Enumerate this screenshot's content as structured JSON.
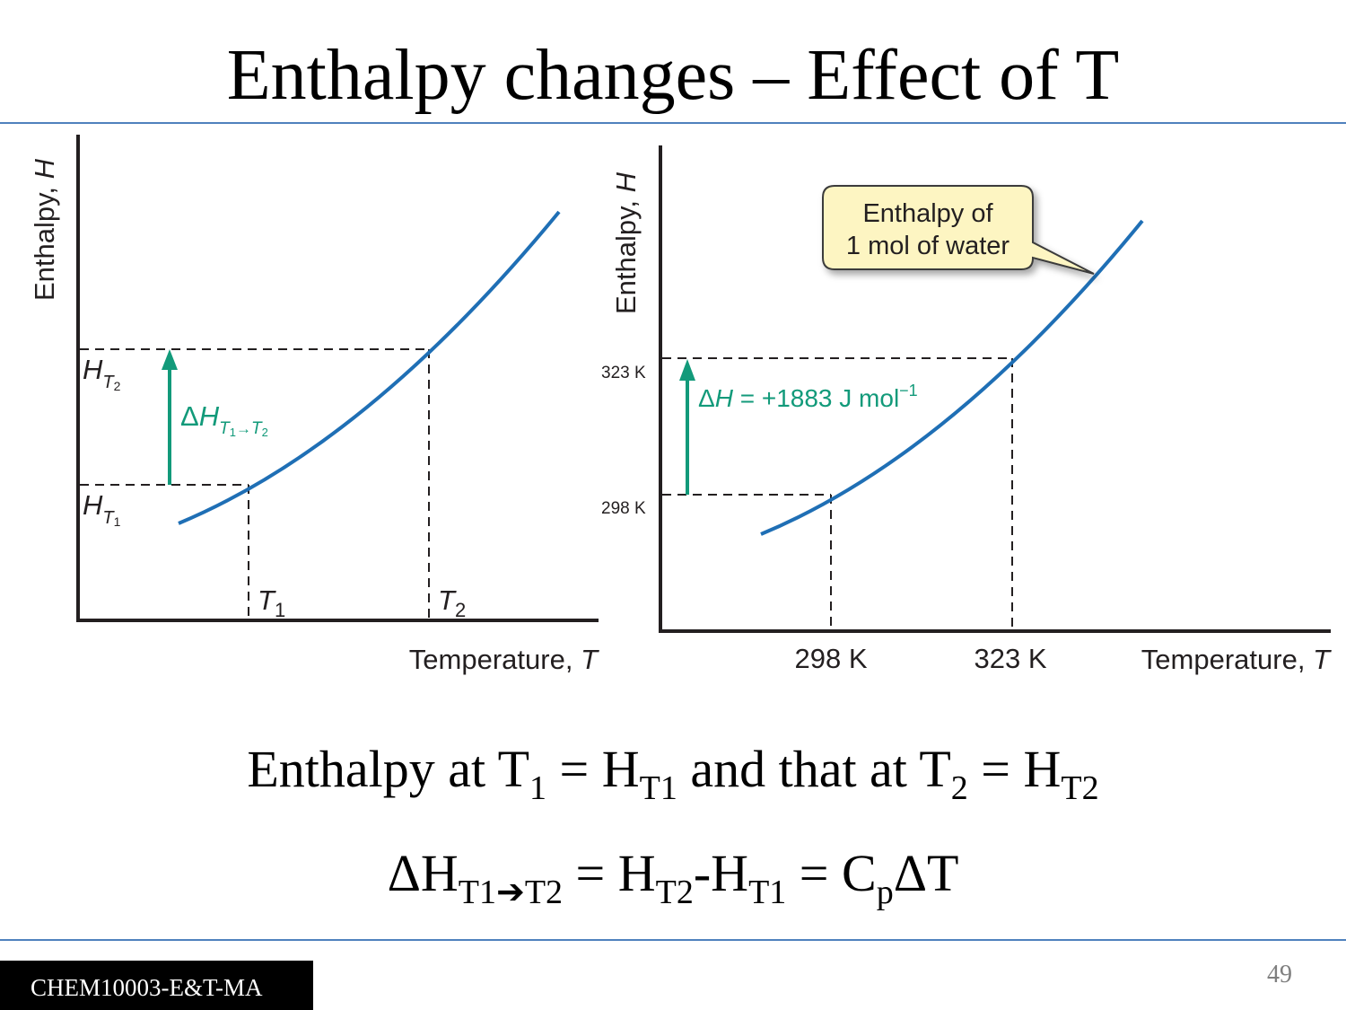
{
  "slide": {
    "title": "Enthalpy changes – Effect of T",
    "page_number": "49",
    "footer": "CHEM10003-E&T-MA"
  },
  "colors": {
    "curve": "#1f6fb5",
    "arrow": "#129a7a",
    "rule": "#4f81bd",
    "callout_fill": "#fdf5c2"
  },
  "left_diagram": {
    "y_axis_label": "Enthalpy, ",
    "y_axis_symbol": "H",
    "x_axis_label": "Temperature, ",
    "x_axis_symbol": "T",
    "h_t2": {
      "base": "H",
      "sub": "T",
      "subsub": "2"
    },
    "h_t1": {
      "base": "H",
      "sub": "T",
      "subsub": "1"
    },
    "t1": {
      "base": "T",
      "sub": "1"
    },
    "t2": {
      "base": "T",
      "sub": "2"
    },
    "delta_label": {
      "delta": "Δ",
      "base": "H",
      "sub_a": "T",
      "sub_a_idx": "1",
      "arrow": "→",
      "sub_b": "T",
      "sub_b_idx": "2"
    }
  },
  "right_diagram": {
    "y_axis_label": "Enthalpy, ",
    "y_axis_symbol": "H",
    "x_axis_label": "Temperature, ",
    "x_axis_symbol": "T",
    "y_tick_high": "323 K",
    "y_tick_low": "298 K",
    "x_tick_1": "298 K",
    "x_tick_2": "323 K",
    "delta_label": {
      "delta": "Δ",
      "symbol": "H",
      "value": "  =  +1883 J mol",
      "exponent": "−1"
    },
    "callout": {
      "line1": "Enthalpy of",
      "line2": "1 mol of water"
    }
  },
  "equation_1": {
    "p1": "Enthalpy at T",
    "s1": "1",
    "p2": " = H",
    "s2": "T1",
    "p3": " and that at T",
    "s3": "2",
    "p4": " = H",
    "s4": "T2"
  },
  "equation_2": {
    "p1": "ΔH",
    "s1": "T1➔T2",
    "p2": " = H",
    "s2": "T2",
    "p3": "-H",
    "s3": "T1",
    "p4": " = C",
    "s4": "p",
    "p5": "ΔT"
  }
}
